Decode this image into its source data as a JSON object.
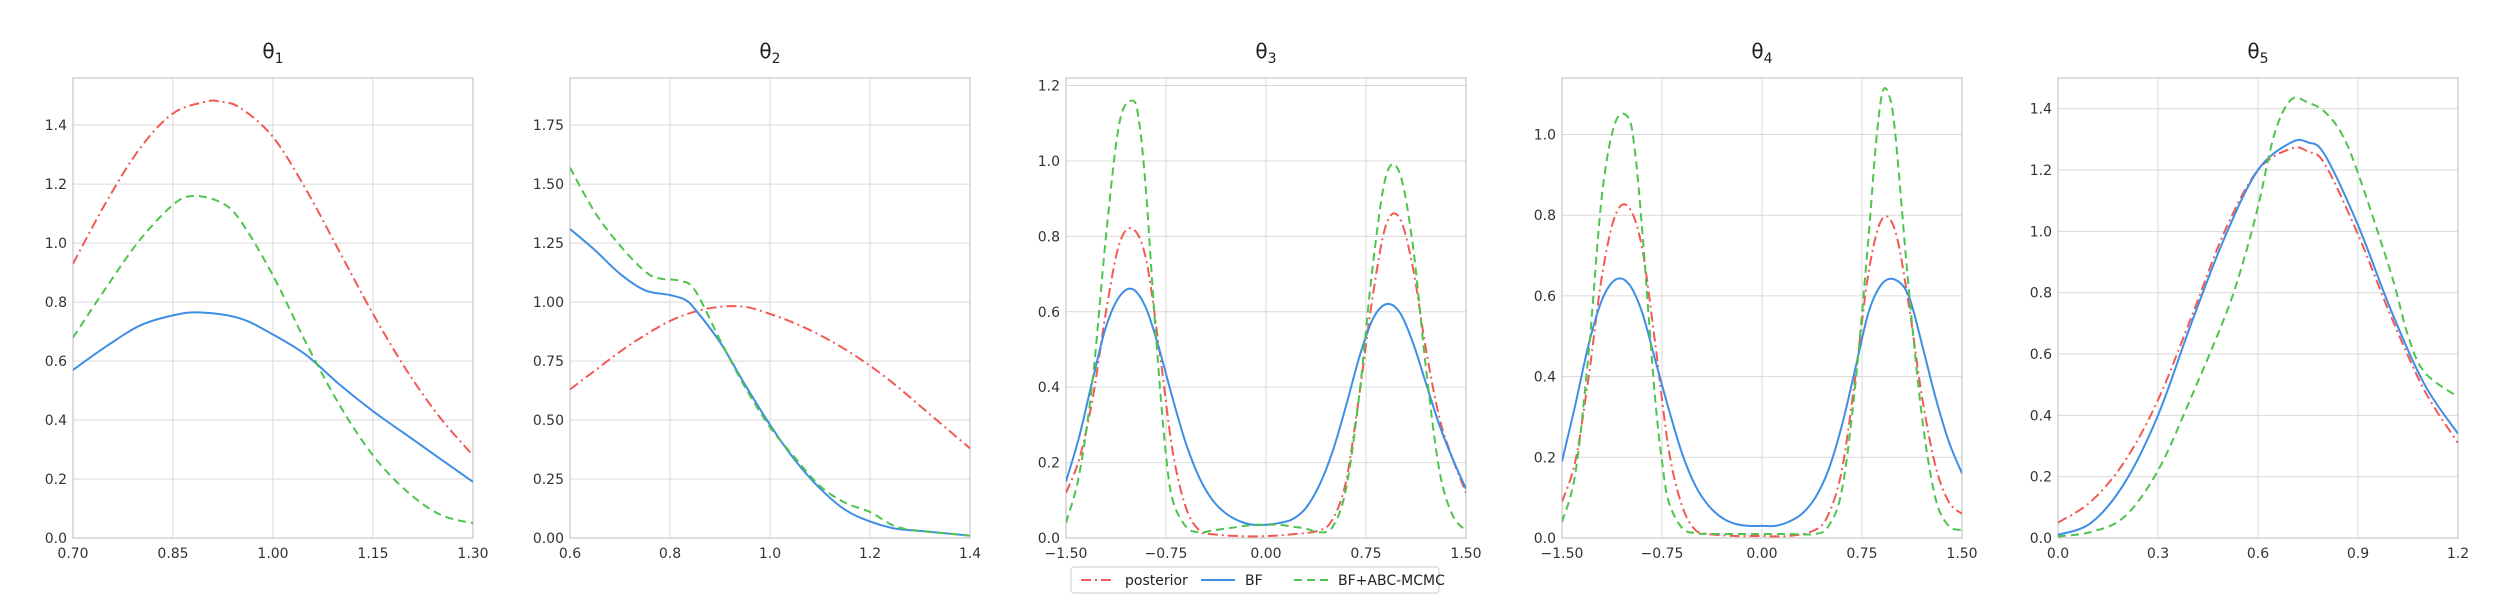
{
  "colors": {
    "posterior": "#f25a55",
    "BF": "#3e8ee6",
    "BF+ABC-MCMC": "#4ec44e",
    "grid": "#d9d9d9",
    "spine": "#bdbdbd"
  },
  "legend": {
    "placement": "lower-center",
    "entries": [
      {
        "name": "posterior",
        "style": "dashdot"
      },
      {
        "name": "BF",
        "style": "solid"
      },
      {
        "name": "BF+ABC-MCMC",
        "style": "dashed"
      }
    ]
  },
  "chart_data": [
    {
      "type": "line",
      "title_base": "θ",
      "title_sub": "1",
      "xlim": [
        0.7,
        1.3
      ],
      "ylim": [
        0,
        1.56
      ],
      "xticks": [
        0.7,
        0.85,
        1.0,
        1.15,
        1.3
      ],
      "xtick_labels": [
        "0.70",
        "0.85",
        "1.00",
        "1.15",
        "1.30"
      ],
      "yticks": [
        0,
        0.2,
        0.4,
        0.6,
        0.8,
        1.0,
        1.2,
        1.4
      ],
      "ytick_labels": [
        "0.0",
        "0.2",
        "0.4",
        "0.6",
        "0.8",
        "1.0",
        "1.2",
        "1.4"
      ],
      "grid": true,
      "series": [
        {
          "name": "posterior",
          "x": [
            0.7,
            0.75,
            0.8,
            0.85,
            0.9,
            0.92,
            0.95,
            1.0,
            1.05,
            1.1,
            1.15,
            1.2,
            1.25,
            1.3
          ],
          "y": [
            0.93,
            1.14,
            1.32,
            1.44,
            1.48,
            1.48,
            1.46,
            1.36,
            1.18,
            0.97,
            0.76,
            0.57,
            0.41,
            0.28
          ]
        },
        {
          "name": "BF",
          "x": [
            0.7,
            0.75,
            0.8,
            0.85,
            0.89,
            0.95,
            1.0,
            1.05,
            1.1,
            1.15,
            1.2,
            1.25,
            1.3
          ],
          "y": [
            0.57,
            0.65,
            0.72,
            0.755,
            0.765,
            0.745,
            0.69,
            0.62,
            0.52,
            0.43,
            0.35,
            0.27,
            0.19
          ]
        },
        {
          "name": "BF+ABC-MCMC",
          "x": [
            0.7,
            0.75,
            0.8,
            0.85,
            0.88,
            0.92,
            0.95,
            1.0,
            1.05,
            1.1,
            1.15,
            1.2,
            1.25,
            1.3
          ],
          "y": [
            0.68,
            0.85,
            1.01,
            1.13,
            1.16,
            1.14,
            1.08,
            0.89,
            0.66,
            0.45,
            0.28,
            0.16,
            0.08,
            0.05
          ]
        }
      ]
    },
    {
      "type": "line",
      "title_base": "θ",
      "title_sub": "2",
      "xlim": [
        0.6,
        1.4
      ],
      "ylim": [
        0,
        1.95
      ],
      "xticks": [
        0.6,
        0.8,
        1.0,
        1.2,
        1.4
      ],
      "xtick_labels": [
        "0.6",
        "0.8",
        "1.0",
        "1.2",
        "1.4"
      ],
      "yticks": [
        0,
        0.25,
        0.5,
        0.75,
        1.0,
        1.25,
        1.5,
        1.75
      ],
      "ytick_labels": [
        "0.00",
        "0.25",
        "0.50",
        "0.75",
        "1.00",
        "1.25",
        "1.50",
        "1.75"
      ],
      "grid": true,
      "series": [
        {
          "name": "posterior",
          "x": [
            0.6,
            0.65,
            0.7,
            0.75,
            0.8,
            0.85,
            0.9,
            0.95,
            1.0,
            1.05,
            1.1,
            1.15,
            1.2,
            1.25,
            1.3,
            1.35,
            1.4
          ],
          "y": [
            0.63,
            0.71,
            0.79,
            0.86,
            0.92,
            0.96,
            0.98,
            0.98,
            0.95,
            0.91,
            0.86,
            0.8,
            0.73,
            0.65,
            0.56,
            0.47,
            0.38
          ]
        },
        {
          "name": "BF",
          "x": [
            0.6,
            0.65,
            0.7,
            0.75,
            0.8,
            0.83,
            0.85,
            0.9,
            0.95,
            1.0,
            1.05,
            1.1,
            1.15,
            1.2,
            1.25,
            1.3,
            1.35,
            1.4
          ],
          "y": [
            1.31,
            1.22,
            1.12,
            1.05,
            1.03,
            1.01,
            0.97,
            0.83,
            0.65,
            0.48,
            0.33,
            0.21,
            0.12,
            0.07,
            0.04,
            0.03,
            0.02,
            0.01
          ]
        },
        {
          "name": "BF+ABC-MCMC",
          "x": [
            0.6,
            0.65,
            0.7,
            0.75,
            0.78,
            0.82,
            0.85,
            0.9,
            0.95,
            1.0,
            1.05,
            1.1,
            1.15,
            1.2,
            1.25,
            1.3,
            1.35,
            1.4
          ],
          "y": [
            1.57,
            1.38,
            1.24,
            1.13,
            1.1,
            1.09,
            1.05,
            0.84,
            0.64,
            0.47,
            0.34,
            0.22,
            0.15,
            0.11,
            0.05,
            0.03,
            0.02,
            0.01
          ]
        }
      ]
    },
    {
      "type": "line",
      "title_base": "θ",
      "title_sub": "3",
      "xlim": [
        -1.5,
        1.5
      ],
      "ylim": [
        0,
        1.22
      ],
      "xticks": [
        -1.5,
        -0.75,
        0.0,
        0.75,
        1.5
      ],
      "xtick_labels": [
        "−1.50",
        "−0.75",
        "0.00",
        "0.75",
        "1.50"
      ],
      "yticks": [
        0,
        0.2,
        0.4,
        0.6,
        0.8,
        1.0,
        1.2
      ],
      "ytick_labels": [
        "0.0",
        "0.2",
        "0.4",
        "0.6",
        "0.8",
        "1.0",
        "1.2"
      ],
      "grid": true,
      "series": [
        {
          "name": "posterior",
          "x": [
            -1.5,
            -1.4,
            -1.3,
            -1.2,
            -1.1,
            -1.0,
            -0.9,
            -0.8,
            -0.7,
            -0.6,
            -0.5,
            -0.4,
            -0.2,
            0.0,
            0.2,
            0.4,
            0.5,
            0.6,
            0.7,
            0.8,
            0.9,
            1.0,
            1.1,
            1.2,
            1.3,
            1.4,
            1.5
          ],
          "y": [
            0.12,
            0.21,
            0.37,
            0.6,
            0.78,
            0.82,
            0.74,
            0.5,
            0.23,
            0.08,
            0.02,
            0.01,
            0.005,
            0.005,
            0.01,
            0.02,
            0.05,
            0.15,
            0.38,
            0.64,
            0.83,
            0.85,
            0.72,
            0.5,
            0.32,
            0.21,
            0.12
          ]
        },
        {
          "name": "BF",
          "x": [
            -1.5,
            -1.4,
            -1.3,
            -1.2,
            -1.1,
            -1.0,
            -0.9,
            -0.8,
            -0.7,
            -0.6,
            -0.5,
            -0.4,
            -0.3,
            -0.2,
            -0.1,
            0.0,
            0.1,
            0.2,
            0.3,
            0.4,
            0.5,
            0.6,
            0.7,
            0.8,
            0.9,
            1.0,
            1.1,
            1.2,
            1.3,
            1.4,
            1.5
          ],
          "y": [
            0.15,
            0.27,
            0.42,
            0.56,
            0.64,
            0.66,
            0.61,
            0.5,
            0.37,
            0.25,
            0.16,
            0.1,
            0.065,
            0.045,
            0.035,
            0.035,
            0.04,
            0.05,
            0.08,
            0.14,
            0.23,
            0.35,
            0.48,
            0.58,
            0.62,
            0.6,
            0.52,
            0.41,
            0.3,
            0.21,
            0.13
          ]
        },
        {
          "name": "BF+ABC-MCMC",
          "x": [
            -1.5,
            -1.4,
            -1.3,
            -1.2,
            -1.1,
            -1.0,
            -0.95,
            -0.9,
            -0.85,
            -0.8,
            -0.75,
            -0.7,
            -0.6,
            -0.5,
            -0.4,
            -0.3,
            -0.2,
            -0.1,
            0.0,
            0.1,
            0.2,
            0.3,
            0.4,
            0.5,
            0.6,
            0.7,
            0.8,
            0.9,
            1.0,
            1.1,
            1.2,
            1.3,
            1.4,
            1.5
          ],
          "y": [
            0.04,
            0.17,
            0.42,
            0.8,
            1.1,
            1.16,
            1.1,
            0.92,
            0.66,
            0.42,
            0.22,
            0.1,
            0.03,
            0.015,
            0.02,
            0.025,
            0.03,
            0.035,
            0.035,
            0.035,
            0.03,
            0.025,
            0.015,
            0.03,
            0.13,
            0.38,
            0.72,
            0.96,
            0.97,
            0.78,
            0.45,
            0.18,
            0.06,
            0.02
          ]
        }
      ]
    },
    {
      "type": "line",
      "title_base": "θ",
      "title_sub": "4",
      "xlim": [
        -1.5,
        1.5
      ],
      "ylim": [
        0,
        1.14
      ],
      "xticks": [
        -1.5,
        -0.75,
        0.0,
        0.75,
        1.5
      ],
      "xtick_labels": [
        "−1.50",
        "−0.75",
        "0.00",
        "0.75",
        "1.50"
      ],
      "yticks": [
        0,
        0.2,
        0.4,
        0.6,
        0.8,
        1.0
      ],
      "ytick_labels": [
        "0.0",
        "0.2",
        "0.4",
        "0.6",
        "0.8",
        "1.0"
      ],
      "grid": true,
      "series": [
        {
          "name": "posterior",
          "x": [
            -1.5,
            -1.4,
            -1.3,
            -1.2,
            -1.1,
            -1.0,
            -0.9,
            -0.8,
            -0.7,
            -0.6,
            -0.5,
            -0.4,
            -0.2,
            0.0,
            0.2,
            0.4,
            0.5,
            0.6,
            0.7,
            0.8,
            0.9,
            1.0,
            1.1,
            1.2,
            1.3,
            1.4,
            1.5
          ],
          "y": [
            0.09,
            0.19,
            0.4,
            0.65,
            0.8,
            0.82,
            0.72,
            0.48,
            0.22,
            0.08,
            0.02,
            0.01,
            0.005,
            0.005,
            0.005,
            0.02,
            0.06,
            0.17,
            0.4,
            0.66,
            0.79,
            0.76,
            0.58,
            0.35,
            0.18,
            0.09,
            0.06
          ]
        },
        {
          "name": "BF",
          "x": [
            -1.5,
            -1.4,
            -1.3,
            -1.2,
            -1.1,
            -1.0,
            -0.9,
            -0.8,
            -0.7,
            -0.6,
            -0.5,
            -0.4,
            -0.3,
            -0.2,
            -0.1,
            0.0,
            0.1,
            0.2,
            0.3,
            0.4,
            0.5,
            0.6,
            0.7,
            0.8,
            0.9,
            1.0,
            1.1,
            1.2,
            1.3,
            1.4,
            1.5
          ],
          "y": [
            0.19,
            0.33,
            0.48,
            0.59,
            0.64,
            0.63,
            0.56,
            0.44,
            0.32,
            0.21,
            0.13,
            0.08,
            0.05,
            0.035,
            0.03,
            0.03,
            0.03,
            0.04,
            0.06,
            0.1,
            0.17,
            0.28,
            0.42,
            0.56,
            0.63,
            0.64,
            0.6,
            0.48,
            0.35,
            0.24,
            0.16
          ]
        },
        {
          "name": "BF+ABC-MCMC",
          "x": [
            -1.5,
            -1.4,
            -1.3,
            -1.2,
            -1.1,
            -1.0,
            -0.95,
            -0.9,
            -0.85,
            -0.8,
            -0.75,
            -0.7,
            -0.6,
            -0.5,
            -0.4,
            -0.2,
            0.0,
            0.2,
            0.4,
            0.5,
            0.6,
            0.7,
            0.8,
            0.85,
            0.9,
            0.95,
            1.0,
            1.1,
            1.2,
            1.3,
            1.4,
            1.5
          ],
          "y": [
            0.04,
            0.16,
            0.46,
            0.85,
            1.03,
            1.04,
            0.95,
            0.77,
            0.55,
            0.34,
            0.19,
            0.09,
            0.025,
            0.012,
            0.01,
            0.01,
            0.01,
            0.01,
            0.01,
            0.03,
            0.12,
            0.38,
            0.75,
            0.96,
            1.1,
            1.1,
            1.0,
            0.62,
            0.3,
            0.1,
            0.03,
            0.02
          ]
        }
      ]
    },
    {
      "type": "line",
      "title_base": "θ",
      "title_sub": "5",
      "xlim": [
        0.0,
        1.2
      ],
      "ylim": [
        0,
        1.5
      ],
      "xticks": [
        0.0,
        0.3,
        0.6,
        0.9,
        1.2
      ],
      "xtick_labels": [
        "0.0",
        "0.3",
        "0.6",
        "0.9",
        "1.2"
      ],
      "yticks": [
        0,
        0.2,
        0.4,
        0.6,
        0.8,
        1.0,
        1.2,
        1.4
      ],
      "ytick_labels": [
        "0.0",
        "0.2",
        "0.4",
        "0.6",
        "0.8",
        "1.0",
        "1.2",
        "1.4"
      ],
      "grid": true,
      "series": [
        {
          "name": "posterior",
          "x": [
            0.0,
            0.1,
            0.2,
            0.3,
            0.4,
            0.5,
            0.6,
            0.7,
            0.75,
            0.8,
            0.9,
            1.0,
            1.1,
            1.2
          ],
          "y": [
            0.05,
            0.12,
            0.25,
            0.45,
            0.72,
            1.0,
            1.2,
            1.27,
            1.26,
            1.22,
            0.99,
            0.72,
            0.48,
            0.31
          ]
        },
        {
          "name": "BF",
          "x": [
            0.0,
            0.1,
            0.2,
            0.3,
            0.4,
            0.5,
            0.6,
            0.7,
            0.75,
            0.8,
            0.9,
            1.0,
            1.1,
            1.2
          ],
          "y": [
            0.01,
            0.05,
            0.18,
            0.4,
            0.7,
            0.98,
            1.2,
            1.29,
            1.29,
            1.25,
            1.02,
            0.74,
            0.5,
            0.34
          ]
        },
        {
          "name": "BF+ABC-MCMC",
          "x": [
            0.0,
            0.1,
            0.2,
            0.3,
            0.4,
            0.5,
            0.55,
            0.6,
            0.65,
            0.7,
            0.75,
            0.8,
            0.85,
            0.9,
            1.0,
            1.05,
            1.1,
            1.2
          ],
          "y": [
            0.005,
            0.02,
            0.07,
            0.22,
            0.46,
            0.72,
            0.88,
            1.08,
            1.32,
            1.43,
            1.42,
            1.39,
            1.32,
            1.19,
            0.86,
            0.66,
            0.54,
            0.46
          ]
        }
      ]
    }
  ]
}
